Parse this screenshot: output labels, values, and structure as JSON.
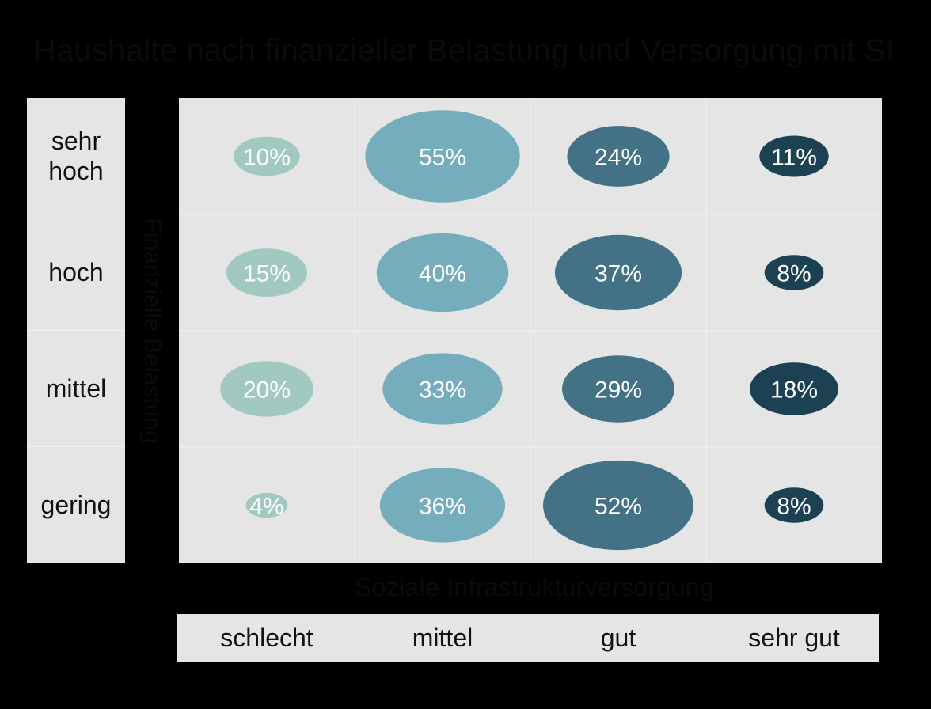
{
  "title": "Haushalte nach finanzieller Belastung und Versorgung mit SI",
  "chart_data": {
    "type": "bubble",
    "title": "Haushalte nach finanzieller Belastung und Versorgung mit SI",
    "ylabel": "Finanzielle Belastung",
    "xlabel": "Soziale Infrastrukturversorgung",
    "rows": [
      "sehr\nhoch",
      "hoch",
      "mittel",
      "gering"
    ],
    "columns": [
      "schlecht",
      "mittel",
      "gut",
      "sehr gut"
    ],
    "values": [
      [
        10,
        55,
        24,
        11
      ],
      [
        15,
        40,
        37,
        8
      ],
      [
        20,
        33,
        29,
        18
      ],
      [
        4,
        36,
        52,
        8
      ]
    ],
    "labels": [
      [
        "10%",
        "55%",
        "24%",
        "11%"
      ],
      [
        "15%",
        "40%",
        "37%",
        "8%"
      ],
      [
        "20%",
        "33%",
        "29%",
        "18%"
      ],
      [
        "4%",
        "36%",
        "52%",
        "8%"
      ]
    ],
    "column_colors": [
      "#a2c8c2",
      "#75adbd",
      "#437286",
      "#1c4152"
    ],
    "grid": true
  }
}
